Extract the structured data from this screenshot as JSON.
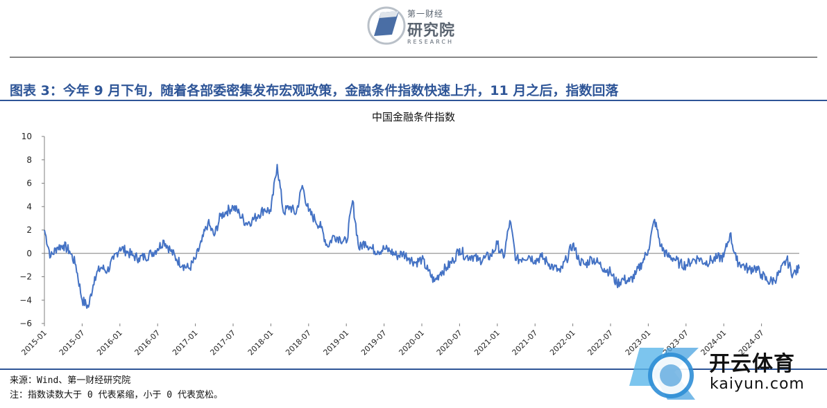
{
  "header": {
    "logo_cn_top": "第一财经",
    "logo_cn": "研究院",
    "logo_en": "RESEARCH"
  },
  "figure_title": "图表 3：今年 9 月下旬，随着各部委密集发布宏观政策，金融条件指数快速上升，11 月之后，指数回落",
  "source_note": "来源：Wind、第一财经研究院",
  "footnote": "注：指数读数大于 0 代表紧缩，小于 0 代表宽松。",
  "watermark": {
    "brand": "开云体育",
    "url": "kaiyun.com"
  },
  "colors": {
    "line": "#4472c4",
    "title": "#2e5597",
    "axis": "#7f7f7f"
  },
  "chart_data": {
    "type": "line",
    "title": "中国金融条件指数",
    "xlabel": "",
    "ylabel": "",
    "ylim": [
      -6,
      10
    ],
    "y_ticks": [
      "10",
      "8",
      "6",
      "4",
      "2",
      "0",
      "−2",
      "−4",
      "−6"
    ],
    "x_ticks": [
      "2015-01",
      "2015-07",
      "2016-01",
      "2016-07",
      "2017-01",
      "2017-07",
      "2018-01",
      "2018-07",
      "2019-01",
      "2019-07",
      "2020-01",
      "2020-07",
      "2021-01",
      "2021-07",
      "2022-01",
      "2022-07",
      "2023-01",
      "2023-07",
      "2024-01",
      "2024-07"
    ],
    "x_range": [
      "2015-01",
      "2025-01"
    ],
    "grid": false,
    "series": [
      {
        "points": [
          [
            "2015-01",
            2.0
          ],
          [
            "2015-02",
            -0.3
          ],
          [
            "2015-03",
            0.5
          ],
          [
            "2015-04",
            0.7
          ],
          [
            "2015-05",
            0.2
          ],
          [
            "2015-06",
            -1.0
          ],
          [
            "2015-07",
            -4.0
          ],
          [
            "2015-08",
            -4.6
          ],
          [
            "2015-09",
            -2.0
          ],
          [
            "2015-10",
            -1.2
          ],
          [
            "2015-11",
            -1.5
          ],
          [
            "2015-12",
            -0.5
          ],
          [
            "2016-01",
            0.5
          ],
          [
            "2016-02",
            0.2
          ],
          [
            "2016-03",
            -0.2
          ],
          [
            "2016-04",
            -0.4
          ],
          [
            "2016-05",
            -0.3
          ],
          [
            "2016-06",
            0.0
          ],
          [
            "2016-07",
            0.4
          ],
          [
            "2016-08",
            1.1
          ],
          [
            "2016-09",
            0.3
          ],
          [
            "2016-10",
            -0.5
          ],
          [
            "2016-11",
            -1.0
          ],
          [
            "2016-12",
            -1.3
          ],
          [
            "2017-01",
            -0.5
          ],
          [
            "2017-02",
            1.0
          ],
          [
            "2017-03",
            2.6
          ],
          [
            "2017-04",
            1.5
          ],
          [
            "2017-05",
            3.2
          ],
          [
            "2017-06",
            3.6
          ],
          [
            "2017-07",
            4.0
          ],
          [
            "2017-08",
            3.4
          ],
          [
            "2017-09",
            2.6
          ],
          [
            "2017-10",
            2.8
          ],
          [
            "2017-11",
            3.3
          ],
          [
            "2017-12",
            3.8
          ],
          [
            "2018-01",
            3.6
          ],
          [
            "2018-02",
            7.6
          ],
          [
            "2018-03",
            3.5
          ],
          [
            "2018-04",
            4.0
          ],
          [
            "2018-05",
            3.4
          ],
          [
            "2018-06",
            5.8
          ],
          [
            "2018-07",
            3.6
          ],
          [
            "2018-08",
            2.9
          ],
          [
            "2018-09",
            2.2
          ],
          [
            "2018-10",
            0.6
          ],
          [
            "2018-11",
            1.5
          ],
          [
            "2018-12",
            1.3
          ],
          [
            "2019-01",
            0.9
          ],
          [
            "2019-02",
            4.5
          ],
          [
            "2019-03",
            0.4
          ],
          [
            "2019-04",
            1.0
          ],
          [
            "2019-05",
            0.4
          ],
          [
            "2019-06",
            0.2
          ],
          [
            "2019-07",
            0.4
          ],
          [
            "2019-08",
            0.2
          ],
          [
            "2019-09",
            -0.2
          ],
          [
            "2019-10",
            0.0
          ],
          [
            "2019-11",
            -0.4
          ],
          [
            "2019-12",
            -0.8
          ],
          [
            "2020-01",
            -0.5
          ],
          [
            "2020-02",
            -1.5
          ],
          [
            "2020-03",
            -2.4
          ],
          [
            "2020-04",
            -1.6
          ],
          [
            "2020-05",
            -1.2
          ],
          [
            "2020-06",
            -0.6
          ],
          [
            "2020-07",
            0.4
          ],
          [
            "2020-08",
            -0.3
          ],
          [
            "2020-09",
            -0.2
          ],
          [
            "2020-10",
            -0.6
          ],
          [
            "2020-11",
            -0.4
          ],
          [
            "2020-12",
            -0.2
          ],
          [
            "2021-01",
            0.8
          ],
          [
            "2021-02",
            -0.4
          ],
          [
            "2021-03",
            2.8
          ],
          [
            "2021-04",
            -0.6
          ],
          [
            "2021-05",
            -0.4
          ],
          [
            "2021-06",
            -0.2
          ],
          [
            "2021-07",
            -0.6
          ],
          [
            "2021-08",
            -0.3
          ],
          [
            "2021-09",
            -0.8
          ],
          [
            "2021-10",
            -1.2
          ],
          [
            "2021-11",
            -1.6
          ],
          [
            "2021-12",
            -0.5
          ],
          [
            "2022-01",
            0.8
          ],
          [
            "2022-02",
            -0.6
          ],
          [
            "2022-03",
            -1.0
          ],
          [
            "2022-04",
            -0.4
          ],
          [
            "2022-05",
            -0.8
          ],
          [
            "2022-06",
            -1.3
          ],
          [
            "2022-07",
            -1.6
          ],
          [
            "2022-08",
            -2.6
          ],
          [
            "2022-09",
            -2.2
          ],
          [
            "2022-10",
            -2.4
          ],
          [
            "2022-11",
            -1.8
          ],
          [
            "2022-12",
            -0.8
          ],
          [
            "2023-01",
            0.3
          ],
          [
            "2023-02",
            2.9
          ],
          [
            "2023-03",
            0.6
          ],
          [
            "2023-04",
            -0.2
          ],
          [
            "2023-05",
            -0.4
          ],
          [
            "2023-06",
            -0.9
          ],
          [
            "2023-07",
            -1.0
          ],
          [
            "2023-08",
            -0.6
          ],
          [
            "2023-09",
            -0.4
          ],
          [
            "2023-10",
            -0.8
          ],
          [
            "2023-11",
            -0.6
          ],
          [
            "2023-12",
            -0.4
          ],
          [
            "2024-01",
            -0.3
          ],
          [
            "2024-02",
            1.7
          ],
          [
            "2024-03",
            -0.6
          ],
          [
            "2024-04",
            -1.0
          ],
          [
            "2024-05",
            -1.4
          ],
          [
            "2024-06",
            -1.2
          ],
          [
            "2024-07",
            -1.8
          ],
          [
            "2024-08",
            -2.4
          ],
          [
            "2024-09",
            -2.3
          ],
          [
            "2024-10",
            -1.6
          ],
          [
            "2024-11",
            -0.5
          ],
          [
            "2024-12",
            -1.8
          ],
          [
            "2025-01",
            -1.3
          ]
        ]
      }
    ]
  }
}
